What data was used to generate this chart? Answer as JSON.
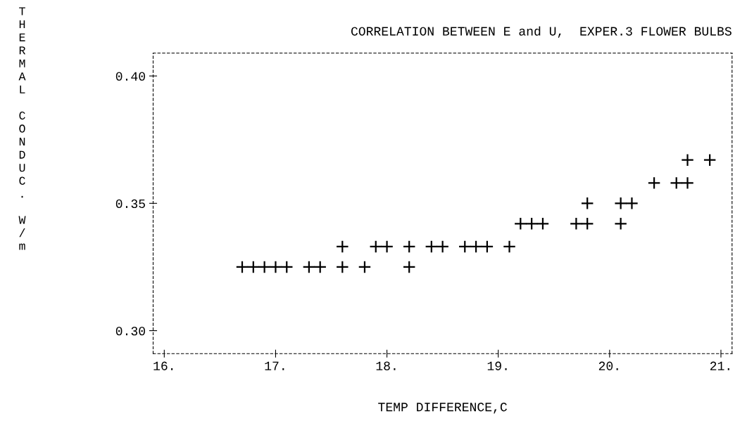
{
  "chart_data": {
    "type": "scatter",
    "title": "CORRELATION BETWEEN E and U,  EXPER.3 FLOWER BULBS",
    "xlabel": "TEMP DIFFERENCE,C",
    "ylabel": "THERMAL CONDUC. W/m",
    "x": [
      16.7,
      16.8,
      16.9,
      17.0,
      17.1,
      17.3,
      17.4,
      17.6,
      17.8,
      18.2,
      17.6,
      17.9,
      18.0,
      18.2,
      18.4,
      18.5,
      18.7,
      18.8,
      18.9,
      19.1,
      19.2,
      19.3,
      19.4,
      19.7,
      19.8,
      20.1,
      19.8,
      20.1,
      20.2,
      20.4,
      20.6,
      20.7,
      20.7,
      20.9
    ],
    "values": [
      0.325,
      0.325,
      0.325,
      0.325,
      0.325,
      0.325,
      0.325,
      0.325,
      0.325,
      0.325,
      0.333,
      0.333,
      0.333,
      0.333,
      0.333,
      0.333,
      0.333,
      0.333,
      0.333,
      0.333,
      0.342,
      0.342,
      0.342,
      0.342,
      0.342,
      0.342,
      0.35,
      0.35,
      0.35,
      0.358,
      0.358,
      0.358,
      0.367,
      0.367
    ],
    "color": "#000000",
    "marker": "cross",
    "grid": false,
    "xlim": [
      15.9,
      21.1
    ],
    "ylim": [
      0.291,
      0.409
    ],
    "xticks": [
      {
        "value": 16,
        "label": "16."
      },
      {
        "value": 17,
        "label": "17."
      },
      {
        "value": 18,
        "label": "18."
      },
      {
        "value": 19,
        "label": "19."
      },
      {
        "value": 20,
        "label": "20."
      },
      {
        "value": 21,
        "label": "21."
      }
    ],
    "yticks": [
      {
        "value": 0.3,
        "label": "0.30"
      },
      {
        "value": 0.35,
        "label": "0.35"
      },
      {
        "value": 0.4,
        "label": "0.40"
      }
    ]
  }
}
